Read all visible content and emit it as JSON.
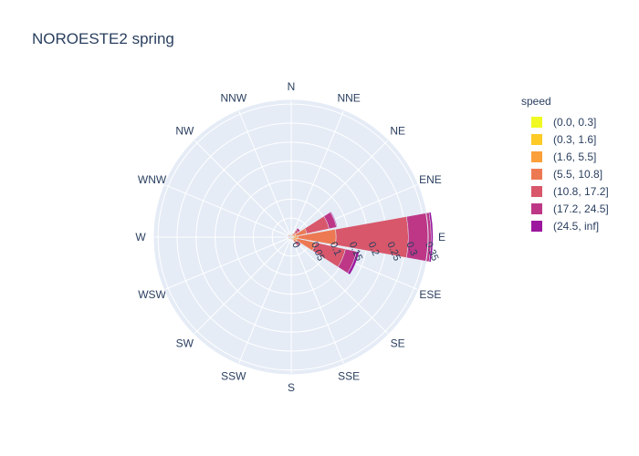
{
  "title": "NOROESTE2 spring",
  "legend_title": "speed",
  "chart_data": {
    "type": "barpolar",
    "title": "NOROESTE2 spring",
    "legend_title": "speed",
    "radial_range": [
      0,
      0.36
    ],
    "radial_ticks": [
      "0",
      "0.05",
      "0.1",
      "0.15",
      "0.2",
      "0.25",
      "0.3",
      "0.35"
    ],
    "radial_tick_values": [
      0,
      0.05,
      0.1,
      0.15,
      0.2,
      0.25,
      0.3,
      0.35
    ],
    "directions": [
      "N",
      "NNE",
      "NE",
      "ENE",
      "E",
      "ESE",
      "SE",
      "SSE",
      "S",
      "SSW",
      "SW",
      "WSW",
      "W",
      "WNW",
      "NW",
      "NNW"
    ],
    "series": [
      {
        "name": "(0.0, 0.3]",
        "color": "#f0f921",
        "values": [
          0.001,
          0.001,
          0.001,
          0.001,
          0.002,
          0.002,
          0.001,
          0.001,
          0.001,
          0.001,
          0.001,
          0.001,
          0.001,
          0.001,
          0.001,
          0.001
        ]
      },
      {
        "name": "(0.3, 1.6]",
        "color": "#fdca26",
        "values": [
          0.002,
          0.002,
          0.002,
          0.003,
          0.004,
          0.004,
          0.003,
          0.002,
          0.002,
          0.002,
          0.002,
          0.002,
          0.002,
          0.002,
          0.002,
          0.002
        ]
      },
      {
        "name": "(1.6, 5.5]",
        "color": "#fb9f3a",
        "values": [
          0.002,
          0.003,
          0.004,
          0.008,
          0.012,
          0.01,
          0.005,
          0.003,
          0.002,
          0.002,
          0.002,
          0.002,
          0.002,
          0.002,
          0.002,
          0.002
        ]
      },
      {
        "name": "(5.5, 10.8]",
        "color": "#ed7953",
        "values": [
          0.002,
          0.003,
          0.008,
          0.03,
          0.1,
          0.05,
          0.008,
          0.002,
          0.001,
          0.001,
          0.001,
          0.002,
          0.002,
          0.003,
          0.002,
          0.001
        ]
      },
      {
        "name": "(10.8, 17.2]",
        "color": "#d8576b",
        "values": [
          0.0,
          0.001,
          0.008,
          0.06,
          0.19,
          0.08,
          0.01,
          0.0,
          0.0,
          0.0,
          0.0,
          0.0,
          0.0,
          0.001,
          0.001,
          0.0
        ]
      },
      {
        "name": "(17.2, 24.5]",
        "color": "#bd3786",
        "values": [
          0.0,
          0.0,
          0.006,
          0.02,
          0.06,
          0.03,
          0.004,
          0.0,
          0.0,
          0.0,
          0.0,
          0.0,
          0.0,
          0.0,
          0.0,
          0.0
        ]
      },
      {
        "name": "(24.5, inf]",
        "color": "#9c179e",
        "values": [
          0.0,
          0.0,
          0.0,
          0.002,
          0.005,
          0.007,
          0.0,
          0.0,
          0.0,
          0.0,
          0.0,
          0.0,
          0.0,
          0.0,
          0.0,
          0.0
        ]
      }
    ],
    "grid": true,
    "legend_position": "right"
  }
}
